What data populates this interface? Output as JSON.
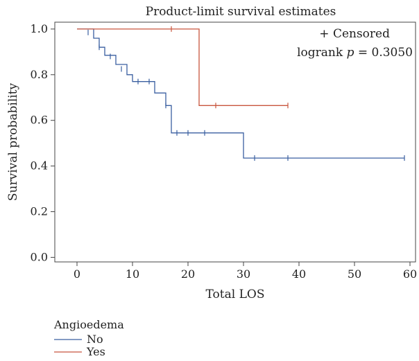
{
  "chart_data": {
    "type": "line",
    "step": true,
    "title": "Product-limit survival estimates",
    "xlabel": "Total LOS",
    "ylabel": "Survival probability",
    "xlim": [
      -4,
      61
    ],
    "ylim": [
      -0.02,
      1.03
    ],
    "xticks": [
      "0",
      "10",
      "20",
      "30",
      "40",
      "50",
      "60"
    ],
    "yticks": [
      "0.0",
      "0.2",
      "0.4",
      "0.6",
      "0.8",
      "1.0"
    ],
    "annotations": {
      "censored": "+ Censored",
      "logrank_prefix": "logrank ",
      "logrank_p": "p",
      "logrank_value": " = 0.3050"
    },
    "legend": {
      "title": "Angioedema",
      "position": "bottom-left"
    },
    "series": [
      {
        "name": "No",
        "color": "#3a5fa0",
        "steps": [
          [
            0,
            1.0
          ],
          [
            3,
            0.96
          ],
          [
            4,
            0.92
          ],
          [
            5,
            0.885
          ],
          [
            7,
            0.845
          ],
          [
            9,
            0.8
          ],
          [
            10,
            0.77
          ],
          [
            14,
            0.72
          ],
          [
            16,
            0.665
          ],
          [
            17,
            0.545
          ],
          [
            30,
            0.435
          ],
          [
            59,
            0.435
          ]
        ],
        "censored": [
          [
            2,
            0.985
          ],
          [
            4,
            0.92
          ],
          [
            6,
            0.88
          ],
          [
            8,
            0.825
          ],
          [
            11,
            0.77
          ],
          [
            13,
            0.77
          ],
          [
            16,
            0.665
          ],
          [
            18,
            0.545
          ],
          [
            20,
            0.545
          ],
          [
            23,
            0.545
          ],
          [
            32,
            0.435
          ],
          [
            38,
            0.435
          ],
          [
            59,
            0.435
          ]
        ]
      },
      {
        "name": "Yes",
        "color": "#c8553d",
        "steps": [
          [
            0,
            1.0
          ],
          [
            22,
            0.665
          ],
          [
            38,
            0.665
          ]
        ],
        "censored": [
          [
            17,
            1.0
          ],
          [
            25,
            0.665
          ],
          [
            38,
            0.665
          ]
        ]
      }
    ]
  }
}
